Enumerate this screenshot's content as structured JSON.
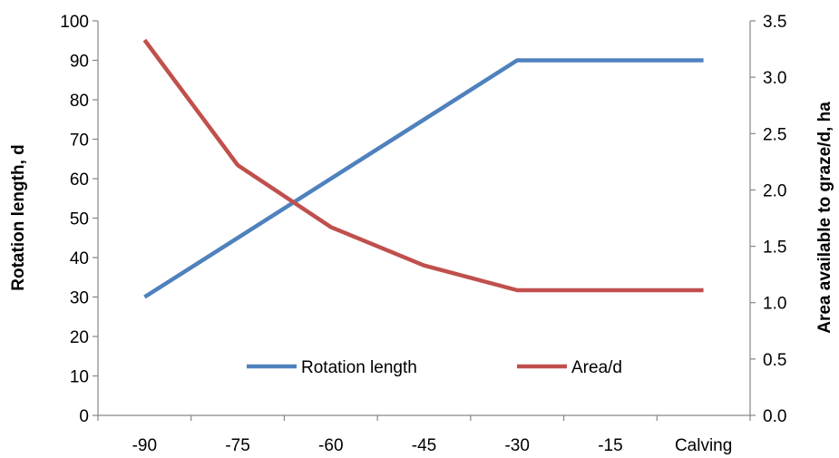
{
  "chart_data": {
    "type": "line",
    "categories": [
      "-90",
      "-75",
      "-60",
      "-45",
      "-30",
      "-15",
      "Calving"
    ],
    "series": [
      {
        "name": "Rotation length",
        "axis": "left",
        "color": "#4F81BD",
        "values": [
          30,
          45,
          60,
          75,
          90,
          90,
          90
        ]
      },
      {
        "name": "Area/d",
        "axis": "right",
        "color": "#C0504D",
        "values": [
          3.33,
          2.22,
          1.67,
          1.33,
          1.11,
          1.11,
          1.11
        ]
      }
    ],
    "ylabel": "Rotation length, d",
    "y2label": "Area available to graze/d, ha",
    "ylim": [
      0,
      100
    ],
    "y2lim": [
      0,
      3.5
    ],
    "yticks": [
      "0",
      "10",
      "20",
      "30",
      "40",
      "50",
      "60",
      "70",
      "80",
      "90",
      "100"
    ],
    "y2ticks": [
      "0.0",
      "0.5",
      "1.0",
      "1.5",
      "2.0",
      "2.5",
      "3.0",
      "3.5"
    ],
    "legend_position": "bottom-center",
    "grid": false
  }
}
